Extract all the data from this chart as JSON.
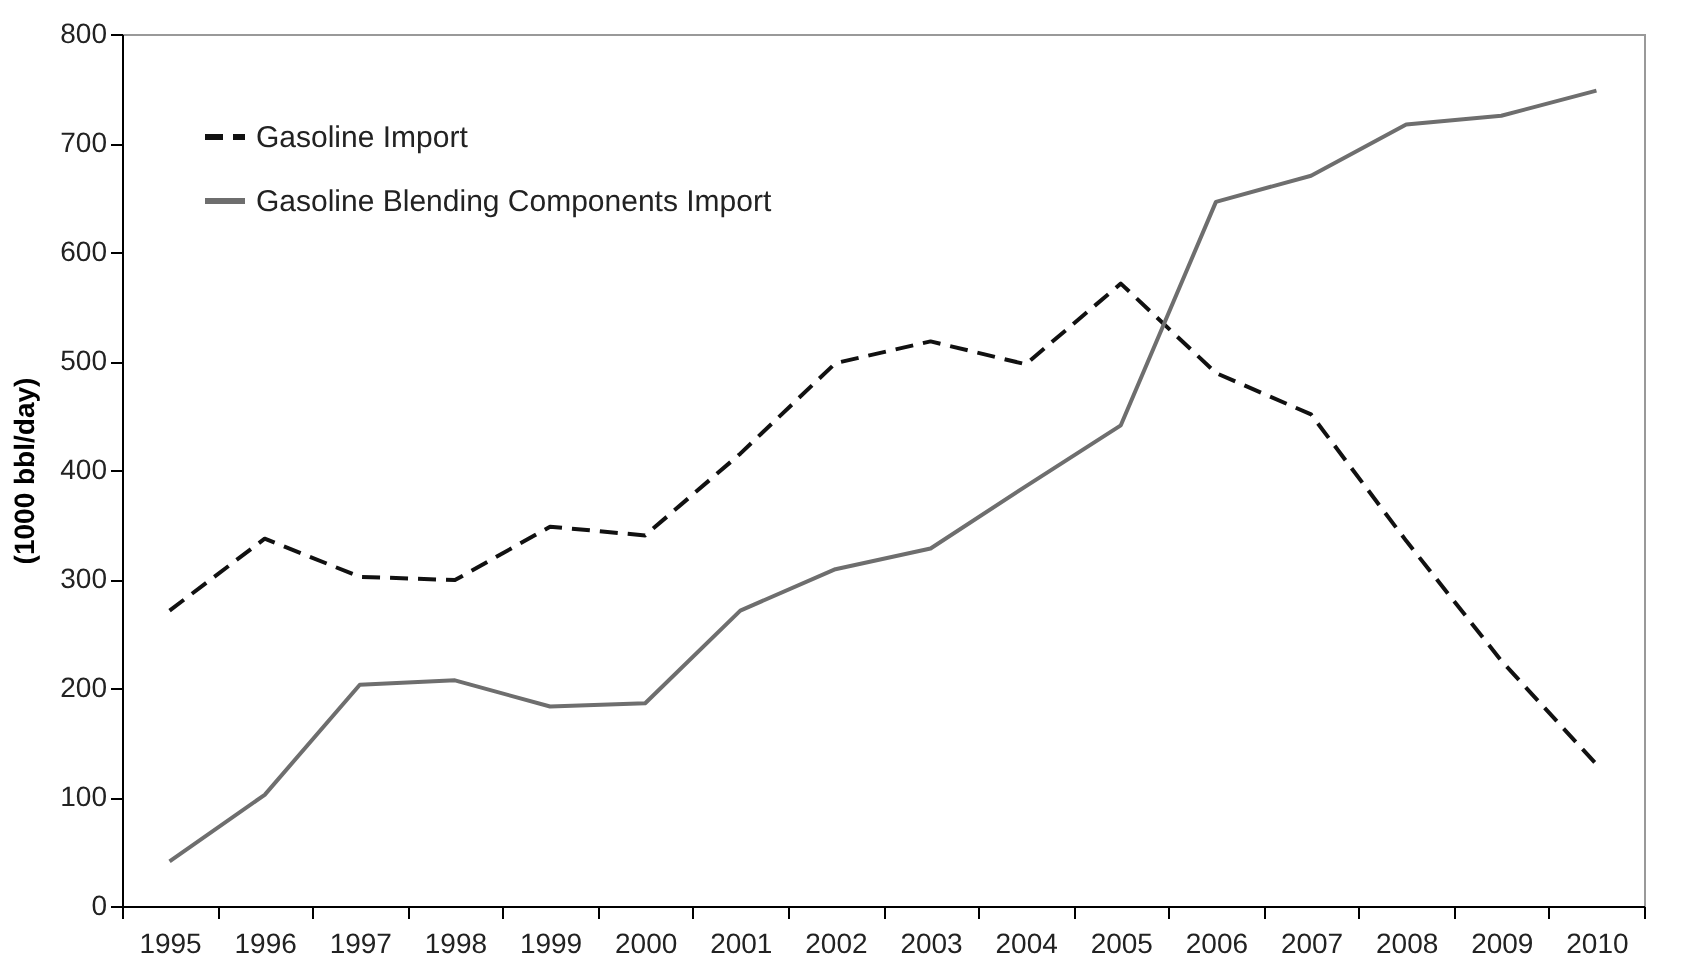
{
  "chart_data": {
    "type": "line",
    "ylabel": "(1000 bbl/day)",
    "categories": [
      "1995",
      "1996",
      "1997",
      "1998",
      "1999",
      "2000",
      "2001",
      "2002",
      "2003",
      "2004",
      "2005",
      "2006",
      "2007",
      "2008",
      "2009",
      "2010"
    ],
    "series": [
      {
        "name": "Gasoline Import",
        "color": "#111111",
        "line_style": "dashed",
        "values": [
          271,
          337,
          302,
          299,
          348,
          340,
          415,
          498,
          518,
          497,
          571,
          489,
          451,
          335,
          225,
          130
        ]
      },
      {
        "name": "Gasoline Blending Components Import",
        "color": "#6e6e6e",
        "line_style": "solid",
        "values": [
          41,
          102,
          203,
          207,
          183,
          186,
          271,
          309,
          328,
          385,
          441,
          646,
          670,
          717,
          725,
          748
        ]
      }
    ],
    "ylim": [
      0,
      800
    ],
    "yticks": [
      0,
      100,
      200,
      300,
      400,
      500,
      600,
      700,
      800
    ],
    "grid": false,
    "legend": "top left",
    "marker": "none"
  }
}
